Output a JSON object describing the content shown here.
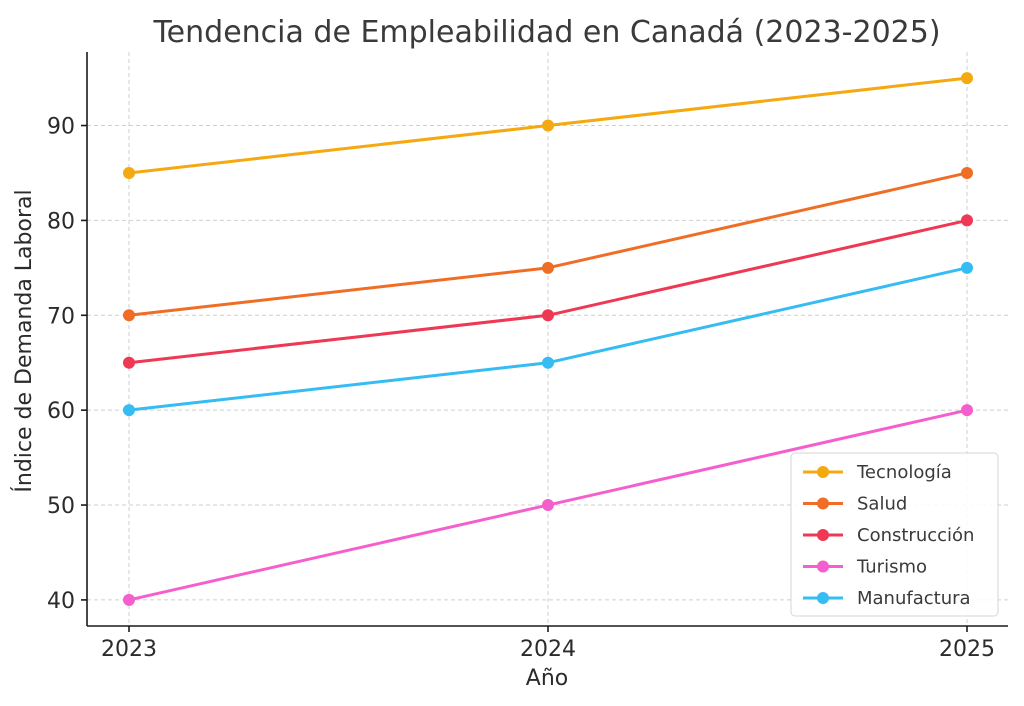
{
  "chart_data": {
    "type": "line",
    "title": "Tendencia de Empleabilidad en Canadá (2023-2025)",
    "xlabel": "Año",
    "ylabel": "Índice de Demanda Laboral",
    "x": [
      "2023",
      "2024",
      "2025"
    ],
    "ylim": [
      37.25,
      97.75
    ],
    "yticks": [
      40,
      50,
      60,
      70,
      80,
      90
    ],
    "grid": true,
    "legend_position": "bottom-right",
    "series": [
      {
        "name": "Tecnología",
        "color": "#f5a911",
        "values": [
          85,
          90,
          95
        ]
      },
      {
        "name": "Salud",
        "color": "#f06d26",
        "values": [
          70,
          75,
          85
        ]
      },
      {
        "name": "Construcción",
        "color": "#ee3854",
        "values": [
          65,
          70,
          80
        ]
      },
      {
        "name": "Turismo",
        "color": "#f55fcd",
        "values": [
          40,
          50,
          60
        ]
      },
      {
        "name": "Manufactura",
        "color": "#35bcf2",
        "values": [
          60,
          65,
          75
        ]
      }
    ]
  }
}
